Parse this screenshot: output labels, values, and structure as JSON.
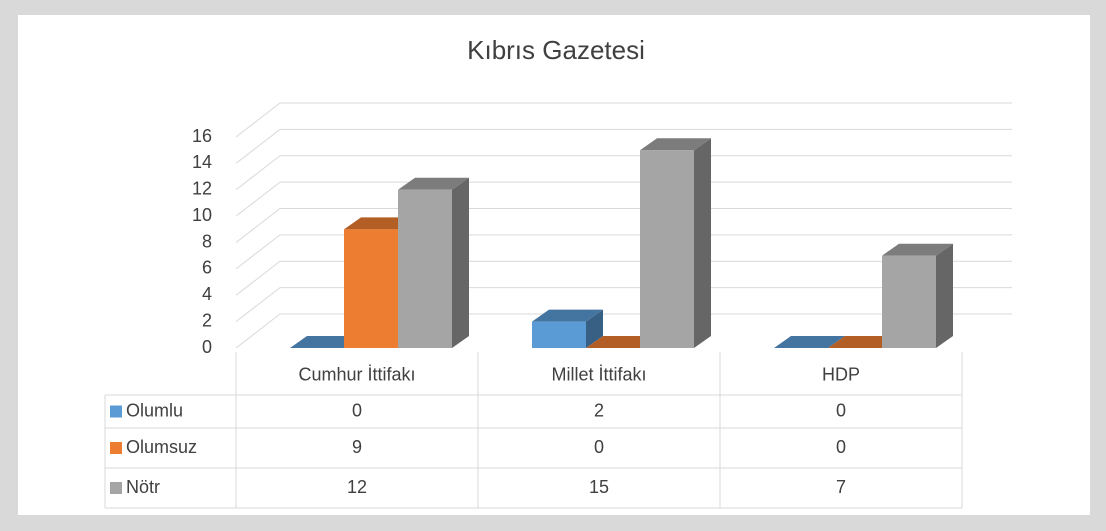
{
  "chart_data": {
    "type": "bar3d",
    "title": "Kıbrıs Gazetesi",
    "categories": [
      "Cumhur İttifakı",
      "Millet İttifakı",
      "HDP"
    ],
    "series": [
      {
        "name": "Olumlu",
        "color": "#5b9bd5",
        "values": [
          0,
          2,
          0
        ]
      },
      {
        "name": "Olumsuz",
        "color": "#ed7d31",
        "values": [
          9,
          0,
          0
        ]
      },
      {
        "name": "Nötr",
        "color": "#a5a5a5",
        "values": [
          12,
          15,
          7
        ]
      }
    ],
    "ylim": [
      0,
      16
    ],
    "yticks": [
      0,
      2,
      4,
      6,
      8,
      10,
      12,
      14,
      16
    ],
    "grid": true,
    "data_table": true
  }
}
